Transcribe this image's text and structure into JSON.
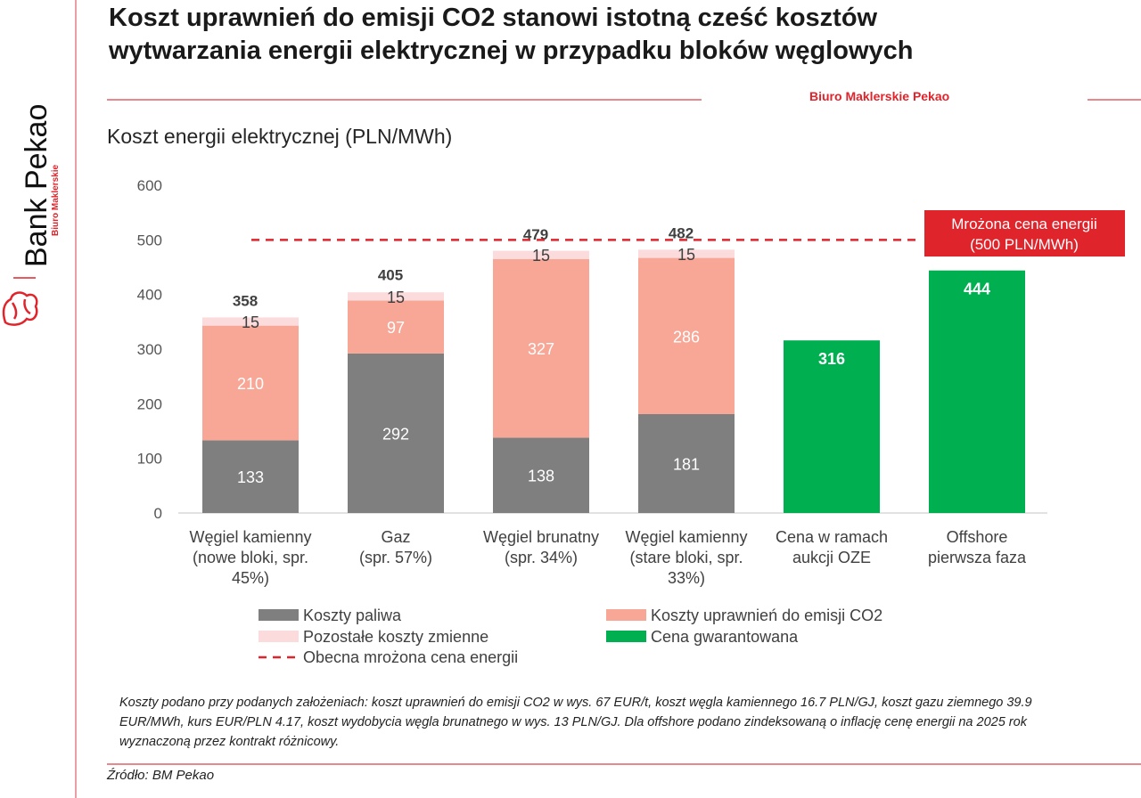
{
  "header": {
    "title_line1": "Koszt uprawnień do emisji CO2 stanowi istotną cześć kosztów",
    "title_line2": "wytwarzania energii elektrycznej w przypadku bloków węglowych",
    "brokerage": "Biuro Maklerskie Pekao"
  },
  "logo": {
    "name": "Bank Pekao",
    "sub": "Biuro Maklerskie"
  },
  "colors": {
    "fuel": "#7f7f7f",
    "co2": "#f8a796",
    "other": "#fbdbdb",
    "guaranteed": "#00b050",
    "accent": "#e0242b"
  },
  "chart_data": {
    "type": "bar",
    "stacked": true,
    "title": "Koszt energii elektrycznej (PLN/MWh)",
    "ylim": [
      0,
      600
    ],
    "yticks": [
      "0",
      "100",
      "200",
      "300",
      "400",
      "500",
      "600"
    ],
    "grid": false,
    "legend_position": "bottom",
    "categories": [
      [
        "Węgiel kamienny",
        "(nowe bloki, spr.",
        "45%)"
      ],
      [
        "Gaz",
        "(spr. 57%)"
      ],
      [
        "Węgiel brunatny",
        "(spr. 34%)"
      ],
      [
        "Węgiel kamienny",
        "(stare bloki, spr.",
        "33%)"
      ],
      [
        "Cena w ramach",
        "aukcji OZE"
      ],
      [
        "Offshore",
        "pierwsza faza"
      ]
    ],
    "series": [
      {
        "name": "Koszty paliwa",
        "values": [
          133,
          292,
          138,
          181,
          null,
          null
        ]
      },
      {
        "name": "Koszty uprawnień do emisji CO2",
        "values": [
          210,
          97,
          327,
          286,
          null,
          null
        ]
      },
      {
        "name": "Pozostałe koszty zmienne",
        "values": [
          15,
          15,
          15,
          15,
          null,
          null
        ]
      },
      {
        "name": "Cena gwarantowana",
        "values": [
          null,
          null,
          null,
          null,
          316,
          444
        ]
      }
    ],
    "totals": [
      358,
      405,
      479,
      482,
      null,
      null
    ],
    "reference_line": {
      "name": "Obecna mrożona cena energii",
      "value": 500,
      "style": "dashed"
    },
    "annotation": [
      "Mrożona cena energii",
      "(500 PLN/MWh)"
    ]
  },
  "footer": {
    "note": "Koszty podano przy podanych założeniach: koszt uprawnień do emisji CO2 w wys. 67 EUR/t, koszt węgla kamiennego 16.7 PLN/GJ, koszt gazu ziemnego 39.9 EUR/MWh, kurs EUR/PLN 4.17, koszt wydobycia węgla brunatnego w wys. 13 PLN/GJ. Dla offshore podano zindeksowaną o inflację cenę energii na 2025 rok wyznaczoną przez kontrakt różnicowy.",
    "source": "Źródło: BM Pekao"
  }
}
